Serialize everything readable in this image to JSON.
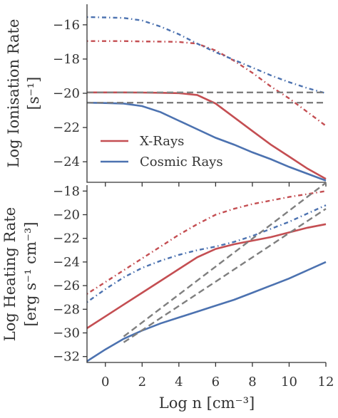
{
  "chart_data": [
    {
      "type": "line",
      "panel": "top",
      "ylabel": "Log Ionisation Rate",
      "ylabel_units": "[s⁻¹]",
      "xlim": [
        -1,
        12
      ],
      "ylim": [
        -25.2,
        -14.8
      ],
      "yticks": [
        -16,
        -18,
        -20,
        -22,
        -24
      ],
      "legend": {
        "placement": "lower-left",
        "entries": [
          "X-Rays",
          "Cosmic Rays"
        ]
      },
      "grid": false,
      "colors": {
        "xray": "#c44e52",
        "cosmic": "#4c72b0",
        "reference": "#7f7f7f"
      },
      "series": [
        {
          "name": "X-Rays",
          "style": "solid",
          "color": "#c44e52",
          "x": [
            -1,
            0,
            1,
            2,
            3,
            4,
            5,
            6,
            7,
            8,
            9,
            10,
            11,
            12
          ],
          "y": [
            -19.95,
            -19.95,
            -19.95,
            -19.96,
            -19.97,
            -19.99,
            -20.1,
            -20.6,
            -21.4,
            -22.2,
            -23.0,
            -23.7,
            -24.4,
            -25.0
          ]
        },
        {
          "style": "dotted",
          "color": "#c44e52",
          "x": [
            -1,
            0,
            1,
            2,
            3,
            4,
            5,
            6,
            7,
            8,
            9,
            10,
            11,
            12
          ],
          "y": [
            -16.95,
            -16.95,
            -16.95,
            -16.97,
            -16.98,
            -17.0,
            -17.1,
            -17.5,
            -18.1,
            -18.8,
            -19.6,
            -20.3,
            -21.1,
            -21.9
          ]
        },
        {
          "name": "Cosmic Rays",
          "style": "solid",
          "color": "#4c72b0",
          "x": [
            -1,
            0,
            1,
            2,
            3,
            4,
            5,
            6,
            7,
            8,
            9,
            10,
            11,
            12
          ],
          "y": [
            -20.55,
            -20.57,
            -20.6,
            -20.75,
            -21.1,
            -21.6,
            -22.1,
            -22.6,
            -23.0,
            -23.45,
            -23.85,
            -24.3,
            -24.7,
            -25.1
          ]
        },
        {
          "style": "dotted",
          "color": "#4c72b0",
          "x": [
            -1,
            0,
            1,
            2,
            3,
            4,
            5,
            6,
            7,
            8,
            9,
            10,
            11,
            12
          ],
          "y": [
            -15.55,
            -15.57,
            -15.6,
            -15.75,
            -16.1,
            -16.55,
            -17.1,
            -17.6,
            -18.05,
            -18.5,
            -18.95,
            -19.35,
            -19.7,
            -20.0
          ]
        },
        {
          "style": "dashed",
          "color": "#7f7f7f",
          "x": [
            -1,
            12
          ],
          "y": [
            -19.95,
            -19.95
          ]
        },
        {
          "style": "dashed",
          "color": "#7f7f7f",
          "x": [
            -1,
            12
          ],
          "y": [
            -20.55,
            -20.55
          ]
        }
      ]
    },
    {
      "type": "line",
      "panel": "bottom",
      "ylabel": "Log Heating Rate",
      "ylabel_units": "[erg s⁻¹ cm⁻³]",
      "xlabel": "Log n [cm⁻³]",
      "xlim": [
        -1,
        12
      ],
      "ylim": [
        -32.5,
        -17.5
      ],
      "xticks": [
        0,
        2,
        4,
        6,
        8,
        10,
        12
      ],
      "yticks": [
        -18,
        -20,
        -22,
        -24,
        -26,
        -28,
        -30,
        -32
      ],
      "grid": false,
      "series": [
        {
          "style": "solid",
          "color": "#c44e52",
          "x": [
            -1,
            0,
            1,
            2,
            3,
            4,
            5,
            6,
            7,
            8,
            9,
            10,
            11,
            12
          ],
          "y": [
            -29.6,
            -28.6,
            -27.6,
            -26.6,
            -25.6,
            -24.6,
            -23.6,
            -22.9,
            -22.5,
            -22.2,
            -21.9,
            -21.5,
            -21.1,
            -20.8
          ]
        },
        {
          "style": "dotted",
          "color": "#c44e52",
          "x": [
            -1,
            0,
            1,
            2,
            3,
            4,
            5,
            6,
            7,
            8,
            9,
            10,
            11,
            12
          ],
          "y": [
            -26.7,
            -25.7,
            -24.7,
            -23.7,
            -22.7,
            -21.7,
            -20.8,
            -20.0,
            -19.5,
            -19.1,
            -18.8,
            -18.5,
            -18.25,
            -18.0
          ]
        },
        {
          "style": "solid",
          "color": "#4c72b0",
          "x": [
            -1,
            0,
            1,
            2,
            3,
            4,
            5,
            6,
            7,
            8,
            9,
            10,
            11,
            12
          ],
          "y": [
            -32.4,
            -31.4,
            -30.5,
            -29.8,
            -29.2,
            -28.7,
            -28.2,
            -27.7,
            -27.2,
            -26.6,
            -26.0,
            -25.4,
            -24.7,
            -24.0
          ]
        },
        {
          "style": "dotted",
          "color": "#4c72b0",
          "x": [
            -1,
            0,
            1,
            2,
            3,
            4,
            5,
            6,
            7,
            8,
            9,
            10,
            11,
            12
          ],
          "y": [
            -27.4,
            -26.3,
            -25.3,
            -24.5,
            -23.9,
            -23.4,
            -23.0,
            -22.7,
            -22.3,
            -21.8,
            -21.2,
            -20.6,
            -19.9,
            -19.2
          ]
        },
        {
          "style": "dashed",
          "color": "#7f7f7f",
          "x": [
            1,
            12
          ],
          "y": [
            -30.3,
            -17.3
          ]
        },
        {
          "style": "dashed",
          "color": "#7f7f7f",
          "x": [
            1,
            12
          ],
          "y": [
            -30.8,
            -19.5
          ]
        }
      ]
    }
  ]
}
